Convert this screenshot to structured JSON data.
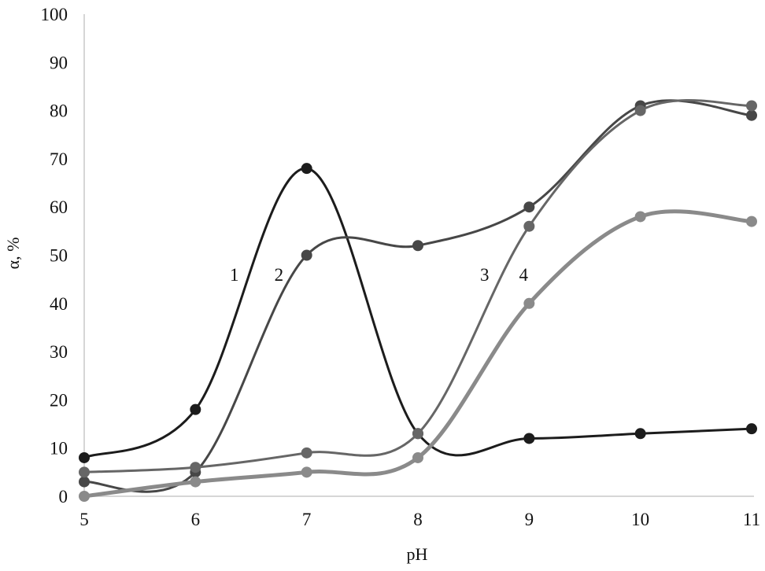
{
  "chart_data": {
    "type": "line",
    "xlabel": "pH",
    "ylabel": "α, %",
    "xlim": [
      5,
      11
    ],
    "ylim": [
      0,
      100
    ],
    "x_ticks": [
      "5",
      "6",
      "7",
      "8",
      "9",
      "10",
      "11"
    ],
    "y_ticks": [
      "0",
      "10",
      "20",
      "30",
      "40",
      "50",
      "60",
      "70",
      "80",
      "90",
      "100"
    ],
    "grid": false,
    "smooth": true,
    "x": [
      5,
      6,
      7,
      8,
      9,
      10,
      11
    ],
    "series": [
      {
        "label": "1",
        "color": "#1c1c1c",
        "values": [
          8,
          18,
          68,
          13,
          12,
          13,
          14
        ]
      },
      {
        "label": "2",
        "color": "#474747",
        "values": [
          3,
          5,
          50,
          52,
          60,
          81,
          79
        ]
      },
      {
        "label": "3",
        "color": "#666666",
        "values": [
          5,
          6,
          9,
          13,
          56,
          80,
          81
        ]
      },
      {
        "label": "4",
        "color": "#8a8a8a",
        "values": [
          0,
          3,
          5,
          8,
          40,
          58,
          57
        ]
      }
    ],
    "annotations": [
      {
        "text": "1",
        "x": 6.35,
        "y": 46
      },
      {
        "text": "2",
        "x": 6.75,
        "y": 46
      },
      {
        "text": "3",
        "x": 8.6,
        "y": 46
      },
      {
        "text": "4",
        "x": 8.95,
        "y": 46
      }
    ]
  }
}
